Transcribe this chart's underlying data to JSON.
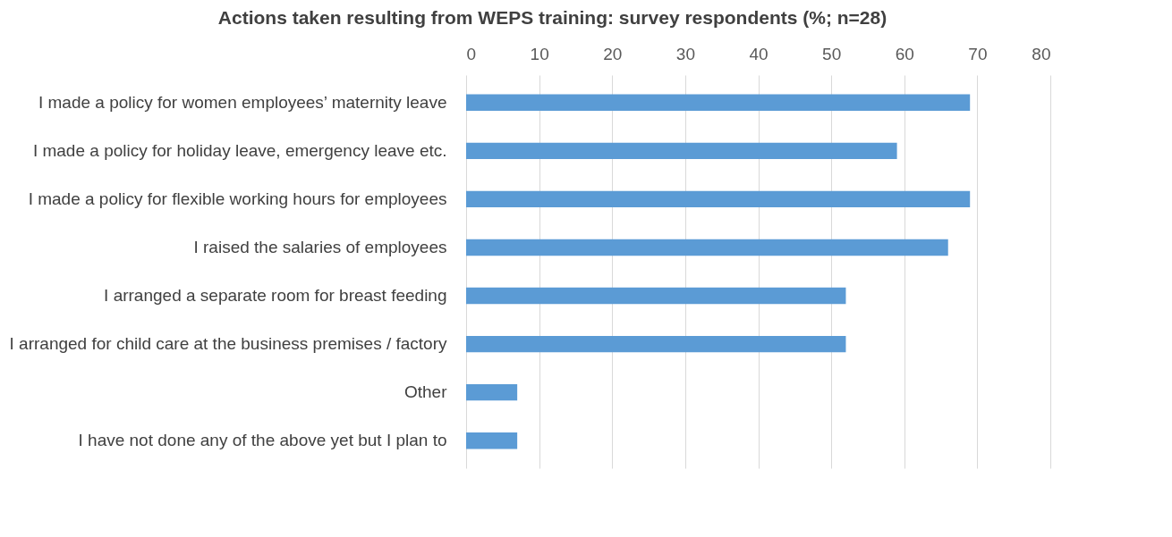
{
  "chart_data": {
    "type": "bar",
    "orientation": "horizontal",
    "title": "Actions taken resulting from WEPS training: survey respondents (%; n=28)",
    "categories": [
      "I made a policy for women employees’ maternity leave",
      "I made a policy for holiday leave, emergency leave etc.",
      "I made a policy for flexible working hours for employees",
      "I raised the salaries of employees",
      "I arranged a separate room for breast feeding",
      "I arranged for child care at the business premises / factory",
      "Other",
      "I have not done any of the above yet but I plan to"
    ],
    "values": [
      69,
      59,
      69,
      66,
      52,
      52,
      7,
      7
    ],
    "color": "#5b9bd5",
    "xlim": [
      0,
      80
    ],
    "xticks": [
      0,
      10,
      20,
      30,
      40,
      50,
      60,
      70,
      80
    ],
    "grid": "x"
  }
}
